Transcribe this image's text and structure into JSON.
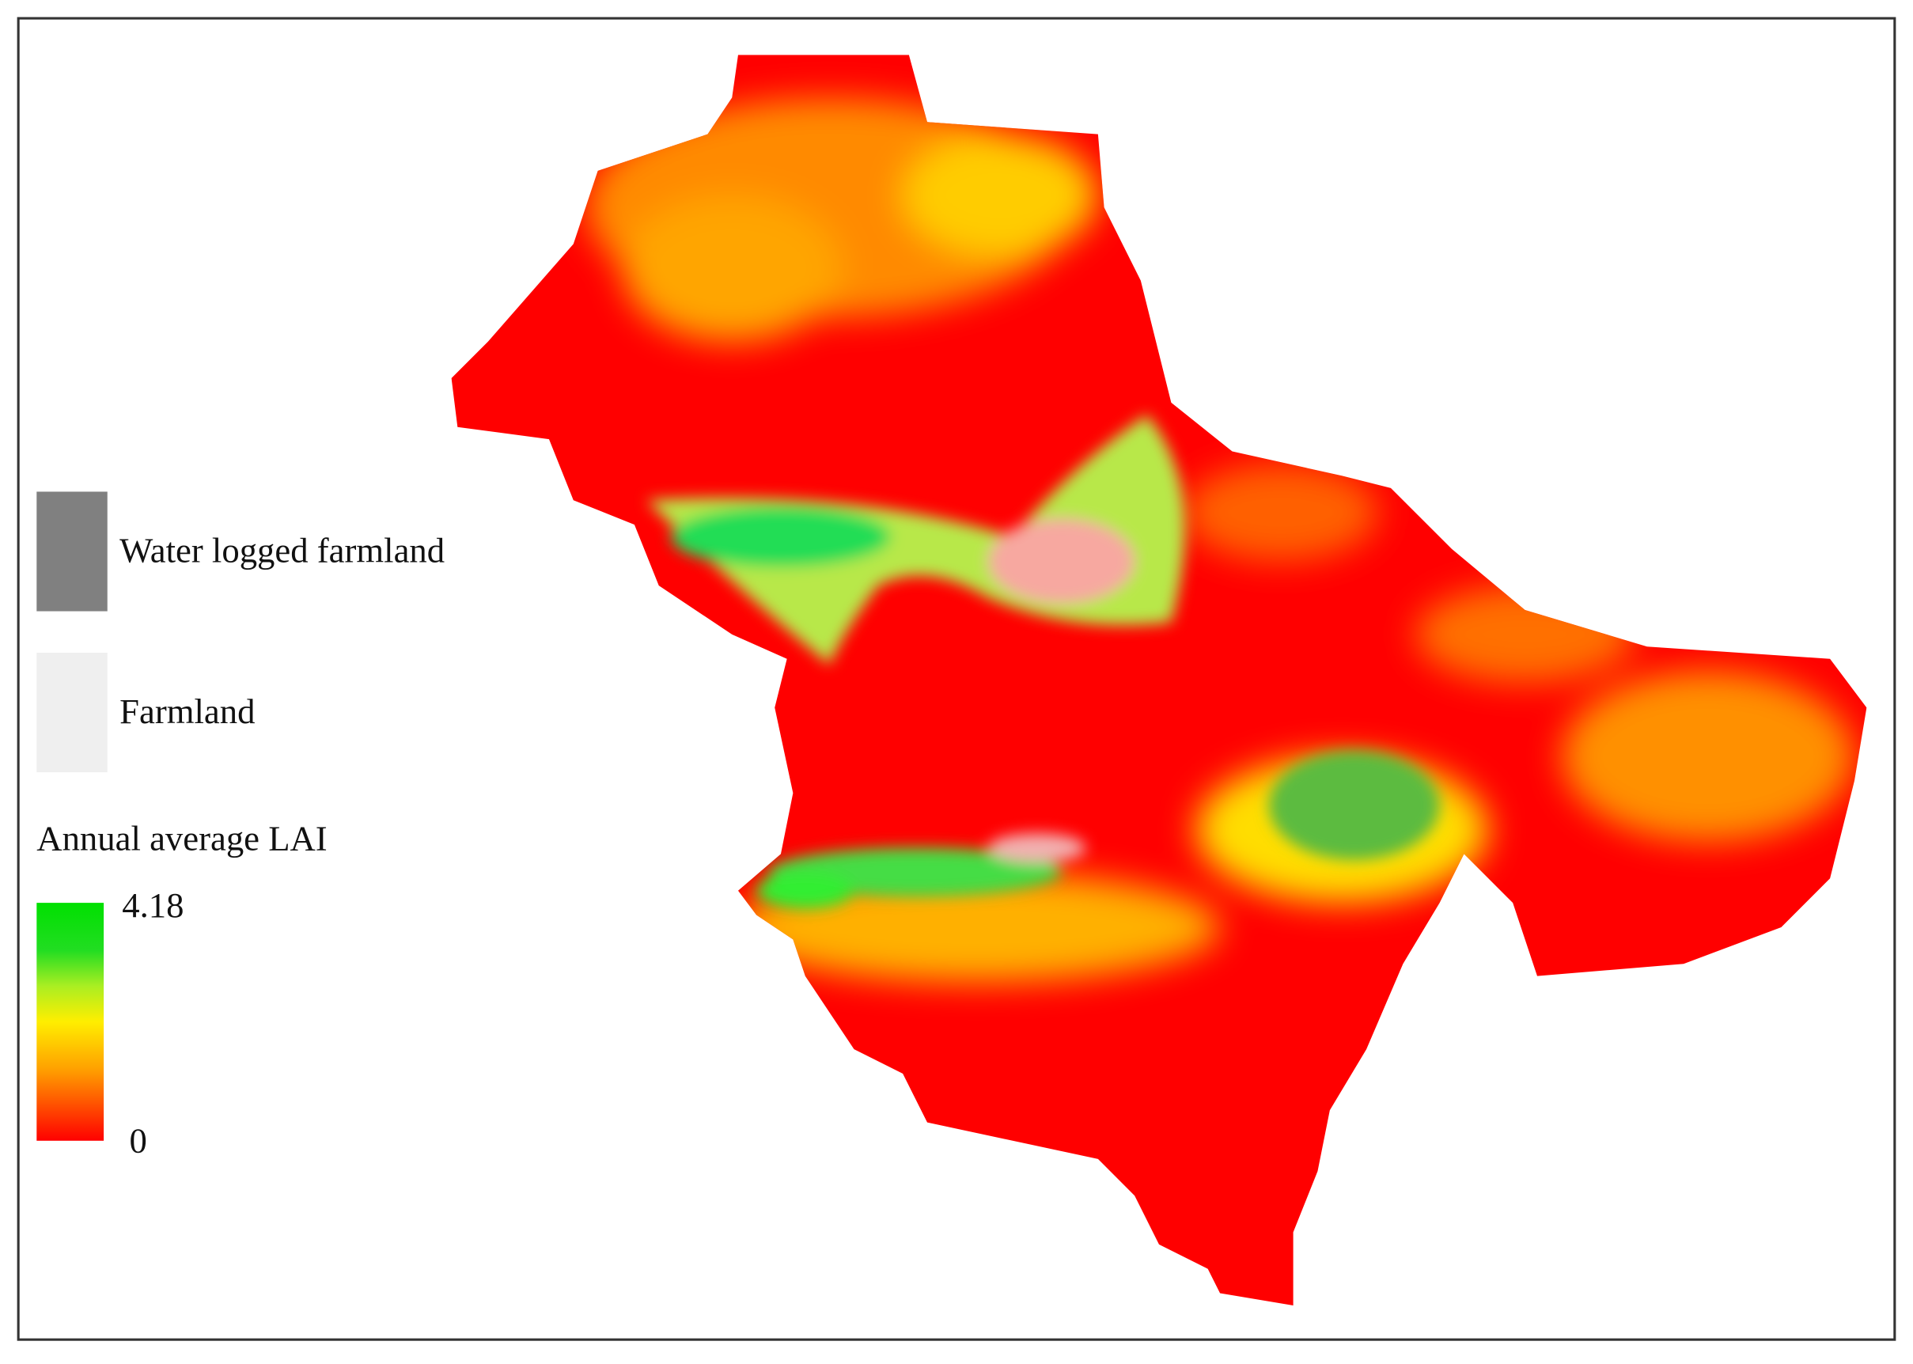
{
  "legend": {
    "items": [
      {
        "label": "Water logged farmland",
        "color": "#808080"
      },
      {
        "label": "Farmland",
        "color": "#efefef"
      }
    ]
  },
  "colorbar": {
    "title": "Annual average LAI",
    "max": 4.18,
    "min": 0
  }
}
